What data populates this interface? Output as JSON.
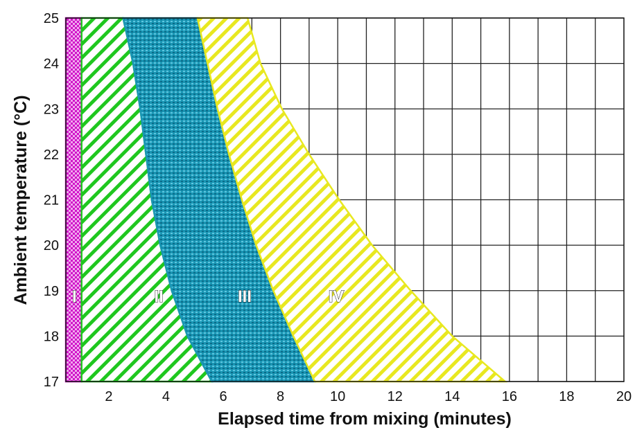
{
  "chart_data": {
    "type": "area",
    "title": "",
    "xlabel": "Elapsed time from mixing (minutes)",
    "ylabel": "Ambient temperature (°C)",
    "xlim": [
      0.5,
      20
    ],
    "ylim": [
      17,
      25
    ],
    "x_ticks": [
      2,
      4,
      6,
      8,
      10,
      12,
      14,
      16,
      18,
      20
    ],
    "y_ticks": [
      17,
      18,
      19,
      20,
      21,
      22,
      23,
      24,
      25
    ],
    "grid": true,
    "legend": "none",
    "boundary_y": [
      25,
      24,
      23,
      22,
      21,
      20,
      19,
      18,
      17
    ],
    "regions": [
      {
        "label": "I",
        "color": "#d015c8",
        "pattern": "checker",
        "label_at": [
          0.8,
          18.85
        ],
        "left_x": [
          0.5,
          0.5,
          0.5,
          0.5,
          0.5,
          0.5,
          0.5,
          0.5,
          0.5
        ],
        "right_x": [
          1.05,
          1.05,
          1.05,
          1.05,
          1.05,
          1.05,
          1.05,
          1.05,
          1.05
        ]
      },
      {
        "label": "II",
        "color": "#1fc71f",
        "pattern": "hatch",
        "label_at": [
          3.75,
          18.85
        ],
        "left_x": [
          1.05,
          1.05,
          1.05,
          1.05,
          1.05,
          1.05,
          1.05,
          1.05,
          1.05
        ],
        "right_x": [
          2.5,
          2.85,
          3.1,
          3.3,
          3.5,
          3.8,
          4.2,
          4.75,
          5.6
        ]
      },
      {
        "label": "III",
        "color": "#1a96b4",
        "pattern": "mesh",
        "label_at": [
          6.75,
          18.85
        ],
        "left_x": [
          2.5,
          2.85,
          3.1,
          3.3,
          3.5,
          3.8,
          4.2,
          4.75,
          5.6
        ],
        "right_x": [
          5.1,
          5.45,
          5.8,
          6.2,
          6.65,
          7.15,
          7.75,
          8.45,
          9.2
        ]
      },
      {
        "label": "IV",
        "color": "#e8e820",
        "pattern": "hatch",
        "label_at": [
          9.95,
          18.85
        ],
        "left_x": [
          5.1,
          5.45,
          5.8,
          6.2,
          6.65,
          7.15,
          7.75,
          8.45,
          9.2
        ],
        "right_x": [
          6.85,
          7.3,
          8.05,
          9.0,
          10.05,
          11.2,
          12.55,
          14.0,
          15.85
        ]
      }
    ]
  }
}
